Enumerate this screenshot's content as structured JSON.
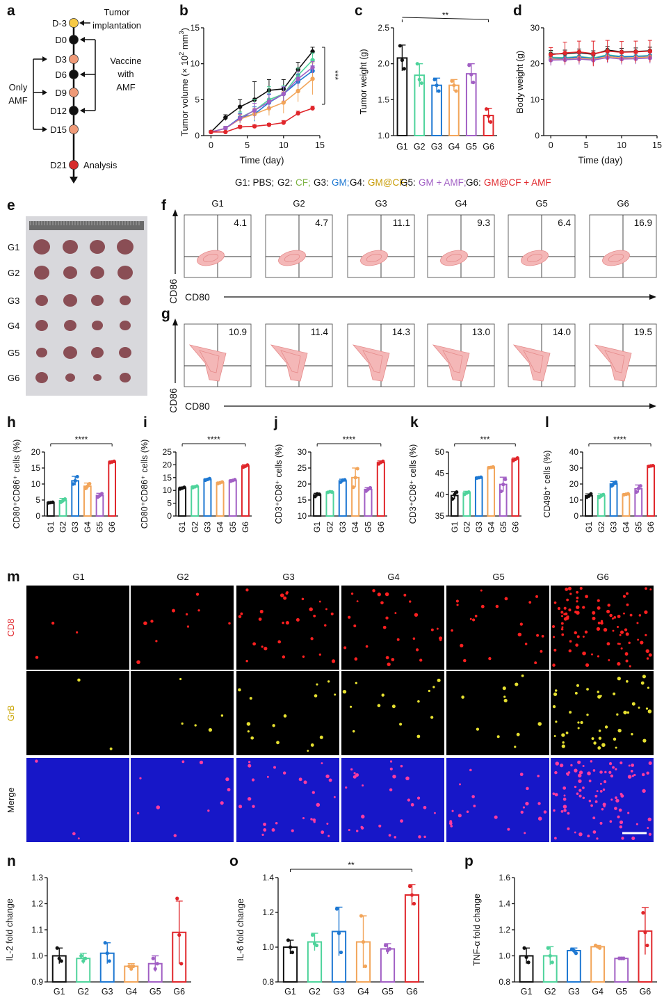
{
  "panel_letters": [
    "a",
    "b",
    "c",
    "d",
    "e",
    "f",
    "g",
    "h",
    "i",
    "j",
    "k",
    "l",
    "m",
    "n",
    "o",
    "p"
  ],
  "group_labels": [
    "G1",
    "G2",
    "G3",
    "G4",
    "G5",
    "G6"
  ],
  "colors": {
    "G1": "#111111",
    "G2": "#4ed39b",
    "G3": "#1e78d2",
    "G4": "#f2a55a",
    "G5": "#a15fc4",
    "G6": "#e0262b",
    "legend_prefix": "#111111",
    "timeline_ok": "#f6c945",
    "timeline_black": "#111111",
    "timeline_orange": "#ef9a78",
    "timeline_red": "#d62d2d",
    "flow_fill": "#f4b7b7",
    "flow_line": "#e58b8b",
    "cd8_dot": "#ff2020",
    "grb_dot": "#e6e030",
    "merge_bg": "#1717c8",
    "merge_dot": "#ff3ca0"
  },
  "timeline": {
    "days": [
      "D-3",
      "D0",
      "D3",
      "D6",
      "D9",
      "D12",
      "D15",
      "D21"
    ],
    "tumor_implantation": "Tumor implantation",
    "tumor_line1": "Tumor",
    "tumor_line2": "implantation",
    "vaccine_line1": "Vaccine",
    "vaccine_line2": "with",
    "vaccine_line3": "AMF",
    "only_line1": "Only",
    "only_line2": "AMF",
    "analysis": "Analysis"
  },
  "legend": {
    "items": [
      {
        "text": "G1: PBS;",
        "color": "#111111"
      },
      {
        "text": "G2:",
        "color": "#111111"
      },
      {
        "text": "CF;",
        "color": "#7cb342"
      },
      {
        "text": "G3:",
        "color": "#111111"
      },
      {
        "text": "GM;",
        "color": "#1e78d2"
      },
      {
        "text": "G4:",
        "color": "#111111"
      },
      {
        "text": "GM@CF;",
        "color": "#c79a00"
      },
      {
        "text": "G5:",
        "color": "#111111"
      },
      {
        "text": "GM + AMF;",
        "color": "#a15fc4"
      },
      {
        "text": "G6:",
        "color": "#111111"
      },
      {
        "text": "GM@CF + AMF",
        "color": "#e0262b"
      }
    ]
  },
  "flow": {
    "xlabel": "CD80",
    "ylabel": "CD86",
    "f_values": [
      "4.1",
      "4.7",
      "11.1",
      "9.3",
      "6.4",
      "16.9"
    ],
    "g_values": [
      "10.9",
      "11.4",
      "14.3",
      "13.0",
      "14.0",
      "19.5"
    ]
  },
  "photo": {
    "row_labels": [
      "G1",
      "G2",
      "G3",
      "G4",
      "G5",
      "G6"
    ]
  },
  "micro": {
    "row_labels": [
      "CD8",
      "GrB",
      "Merge"
    ],
    "row_colors": [
      "#e0262b",
      "#c9a400",
      "#111111"
    ]
  },
  "chart_data": [
    {
      "id": "b",
      "type": "line",
      "xlabel": "Time (day)",
      "ylabel": "Tumor volume (× 10² mm³)",
      "ylabel_main": "Tumor volume (× 10",
      "ylabel_sup": "2",
      "ylabel_tail": " mm",
      "ylabel_sup2": "3",
      "ylabel_end": ")",
      "xlim": [
        -1,
        15
      ],
      "ylim": [
        0,
        15
      ],
      "xticks": [
        0,
        5,
        10,
        15
      ],
      "yticks": [
        0,
        5,
        10,
        15
      ],
      "x": [
        0,
        2,
        4,
        6,
        8,
        10,
        12,
        14
      ],
      "significance": "***",
      "series": [
        {
          "name": "G1",
          "values": [
            0.5,
            2.5,
            4.0,
            5.0,
            6.3,
            6.5,
            9.2,
            11.7
          ],
          "err": [
            0.2,
            0.4,
            1.0,
            2.5,
            1.5,
            1.3,
            1.0,
            0.6
          ]
        },
        {
          "name": "G2",
          "values": [
            0.5,
            1.0,
            2.5,
            3.5,
            5.0,
            5.8,
            8.4,
            10.5
          ],
          "err": [
            0.1,
            0.3,
            0.8,
            1.5,
            1.8,
            1.2,
            1.0,
            1.0
          ]
        },
        {
          "name": "G3",
          "values": [
            0.5,
            1.0,
            2.5,
            3.0,
            4.6,
            5.8,
            7.5,
            9.0
          ],
          "err": [
            0.1,
            0.3,
            0.6,
            1.0,
            1.2,
            1.0,
            1.0,
            0.7
          ]
        },
        {
          "name": "G4",
          "values": [
            0.5,
            1.0,
            2.3,
            3.0,
            3.8,
            4.6,
            6.2,
            7.9
          ],
          "err": [
            0.1,
            0.3,
            0.6,
            0.8,
            1.0,
            1.5,
            1.5,
            2.2
          ]
        },
        {
          "name": "G5",
          "values": [
            0.5,
            1.0,
            2.4,
            3.5,
            4.7,
            5.8,
            7.9,
            9.5
          ],
          "err": [
            0.1,
            0.3,
            0.6,
            1.0,
            1.0,
            1.0,
            1.0,
            0.8
          ]
        },
        {
          "name": "G6",
          "values": [
            0.5,
            0.5,
            1.2,
            1.3,
            1.5,
            1.8,
            3.1,
            3.8
          ],
          "err": [
            0.1,
            0.1,
            0.2,
            0.2,
            0.2,
            0.3,
            0.3,
            0.3
          ]
        }
      ]
    },
    {
      "id": "c",
      "type": "bar",
      "ylabel": "Tumor weight (g)",
      "ylim": [
        1.0,
        2.5
      ],
      "yticks": [
        "1.0",
        "1.5",
        "2.0",
        "2.5"
      ],
      "categories": [
        "G1",
        "G2",
        "G3",
        "G4",
        "G5",
        "G6"
      ],
      "values": [
        2.08,
        1.84,
        1.7,
        1.7,
        1.86,
        1.28
      ],
      "err": [
        0.18,
        0.16,
        0.1,
        0.08,
        0.14,
        0.1
      ],
      "points": [
        [
          2.25,
          2.05,
          1.93
        ],
        [
          2.0,
          1.78,
          1.73
        ],
        [
          1.78,
          1.7,
          1.62
        ],
        [
          1.76,
          1.7,
          1.62
        ],
        [
          1.98,
          1.85,
          1.74
        ],
        [
          1.37,
          1.27,
          1.19
        ]
      ],
      "significance": "**",
      "sig_span": [
        0,
        5
      ]
    },
    {
      "id": "d",
      "type": "line",
      "xlabel": "Time (day)",
      "ylabel": "Body weight (g)",
      "xlim": [
        -1,
        15
      ],
      "ylim": [
        0,
        30
      ],
      "xticks": [
        0,
        5,
        10,
        15
      ],
      "yticks": [
        0,
        10,
        20,
        30
      ],
      "x": [
        0,
        2,
        4,
        6,
        8,
        10,
        12,
        14
      ],
      "series": [
        {
          "name": "G1",
          "values": [
            22.7,
            22.8,
            23.1,
            22.6,
            23.8,
            23.3,
            23.4,
            23.6
          ],
          "err": [
            1.0,
            1.0,
            1.0,
            1.0,
            1.0,
            1.0,
            1.0,
            1.0
          ]
        },
        {
          "name": "G2",
          "values": [
            21.8,
            21.7,
            22.0,
            21.6,
            22.5,
            22.0,
            22.1,
            22.3
          ],
          "err": [
            1.5,
            1.5,
            1.5,
            1.5,
            1.5,
            1.5,
            1.5,
            1.5
          ]
        },
        {
          "name": "G3",
          "values": [
            21.6,
            21.5,
            21.9,
            21.4,
            22.3,
            21.9,
            22.0,
            22.2
          ],
          "err": [
            1.2,
            1.2,
            1.2,
            1.2,
            1.2,
            1.2,
            1.2,
            1.2
          ]
        },
        {
          "name": "G4",
          "values": [
            21.3,
            21.2,
            21.6,
            21.2,
            22.0,
            21.6,
            21.7,
            21.9
          ],
          "err": [
            1.5,
            1.5,
            1.5,
            1.5,
            1.5,
            1.5,
            1.5,
            1.5
          ]
        },
        {
          "name": "G5",
          "values": [
            21.0,
            21.1,
            21.3,
            21.0,
            21.7,
            21.3,
            21.4,
            21.6
          ],
          "err": [
            1.5,
            1.5,
            1.5,
            1.5,
            1.5,
            1.5,
            1.5,
            1.5
          ]
        },
        {
          "name": "G6",
          "values": [
            22.5,
            23.0,
            23.3,
            22.8,
            23.5,
            23.2,
            23.3,
            23.5
          ],
          "err": [
            2.0,
            3.0,
            3.0,
            3.5,
            3.0,
            3.0,
            3.0,
            3.0
          ]
        }
      ]
    },
    {
      "id": "h",
      "type": "bar",
      "ylabel": "CD80⁺CD86⁺ cells (%)",
      "ylim": [
        0,
        20
      ],
      "yticks": [
        "0",
        "5",
        "10",
        "15",
        "20"
      ],
      "categories": [
        "G1",
        "G2",
        "G3",
        "G4",
        "G5",
        "G6"
      ],
      "values": [
        4.2,
        4.8,
        11.0,
        9.3,
        6.4,
        16.9
      ],
      "err": [
        0.2,
        0.7,
        1.4,
        1.0,
        0.7,
        0.3
      ],
      "points": [
        [
          4.1,
          4.2,
          4.3
        ],
        [
          4.3,
          4.8,
          5.3
        ],
        [
          10.0,
          11.0,
          12.3
        ],
        [
          8.6,
          9.3,
          10.1
        ],
        [
          5.9,
          6.4,
          7.0
        ],
        [
          16.7,
          16.9,
          17.1
        ]
      ],
      "significance": "****",
      "sig_span": [
        0,
        5
      ]
    },
    {
      "id": "i",
      "type": "bar",
      "ylabel": "CD80⁺CD86⁺ cells (%)",
      "ylim": [
        0,
        25
      ],
      "yticks": [
        "0",
        "5",
        "10",
        "15",
        "20",
        "25"
      ],
      "categories": [
        "G1",
        "G2",
        "G3",
        "G4",
        "G5",
        "G6"
      ],
      "values": [
        10.9,
        11.4,
        14.3,
        13.0,
        13.9,
        19.5
      ],
      "err": [
        0.4,
        0.4,
        0.3,
        0.3,
        0.3,
        0.5
      ],
      "points": [
        [
          10.6,
          10.9,
          11.2
        ],
        [
          11.1,
          11.4,
          11.7
        ],
        [
          14.0,
          14.3,
          14.6
        ],
        [
          12.7,
          13.0,
          13.3
        ],
        [
          13.6,
          13.9,
          14.2
        ],
        [
          19.1,
          19.5,
          19.9
        ]
      ],
      "significance": "****",
      "sig_span": [
        0,
        5
      ]
    },
    {
      "id": "j",
      "type": "bar",
      "ylabel": "CD3⁺CD8⁺ cells (%)",
      "ylim": [
        10,
        30
      ],
      "yticks": [
        "10",
        "15",
        "20",
        "25",
        "30"
      ],
      "categories": [
        "G1",
        "G2",
        "G3",
        "G4",
        "G5",
        "G6"
      ],
      "values": [
        16.6,
        17.5,
        21.0,
        22.0,
        18.3,
        26.7
      ],
      "err": [
        0.5,
        0.2,
        0.5,
        3.0,
        0.6,
        0.5
      ],
      "points": [
        [
          16.1,
          16.9,
          16.8
        ],
        [
          17.4,
          17.6,
          17.5
        ],
        [
          20.6,
          21.2,
          21.3
        ],
        [
          19.0,
          22.0,
          24.8
        ],
        [
          17.8,
          18.4,
          18.8
        ],
        [
          26.3,
          26.8,
          27.1
        ]
      ],
      "significance": "****",
      "sig_span": [
        0,
        5
      ]
    },
    {
      "id": "k",
      "type": "bar",
      "ylabel": "CD3⁺CD8⁺ cells (%)",
      "ylim": [
        35,
        50
      ],
      "yticks": [
        "35",
        "40",
        "45",
        "50"
      ],
      "categories": [
        "G1",
        "G2",
        "G3",
        "G4",
        "G5",
        "G6"
      ],
      "values": [
        39.8,
        40.4,
        44.0,
        46.4,
        42.4,
        48.3
      ],
      "err": [
        0.9,
        0.4,
        0.2,
        0.2,
        1.7,
        0.3
      ],
      "points": [
        [
          39.0,
          40.0,
          40.6
        ],
        [
          40.1,
          40.4,
          40.6
        ],
        [
          43.9,
          44.0,
          44.1
        ],
        [
          46.3,
          46.4,
          46.5
        ],
        [
          40.8,
          42.4,
          43.6
        ],
        [
          48.0,
          48.3,
          48.6
        ]
      ],
      "significance": "***",
      "sig_span": [
        0,
        5
      ]
    },
    {
      "id": "l",
      "type": "bar",
      "ylabel": "CD49b⁺ cells (%)",
      "ylim": [
        0,
        40
      ],
      "yticks": [
        "0",
        "10",
        "20",
        "30",
        "40"
      ],
      "categories": [
        "G1",
        "G2",
        "G3",
        "G4",
        "G5",
        "G6"
      ],
      "values": [
        12.6,
        12.6,
        20.0,
        13.6,
        17.0,
        31.3
      ],
      "err": [
        1.2,
        1.2,
        1.6,
        0.4,
        2.4,
        0.3
      ],
      "points": [
        [
          11.7,
          12.5,
          13.8
        ],
        [
          11.6,
          12.6,
          13.4
        ],
        [
          18.8,
          20.2,
          21.2
        ],
        [
          13.3,
          13.6,
          13.9
        ],
        [
          15.0,
          17.2,
          18.8
        ],
        [
          31.0,
          31.3,
          31.5
        ]
      ],
      "significance": "****",
      "sig_span": [
        0,
        5
      ]
    },
    {
      "id": "n",
      "type": "bar",
      "ylabel": "IL-2 fold change",
      "ylim": [
        0.9,
        1.3
      ],
      "yticks": [
        "0.9",
        "1.0",
        "1.1",
        "1.2",
        "1.3"
      ],
      "categories": [
        "G1",
        "G2",
        "G3",
        "G4",
        "G5",
        "G6"
      ],
      "values": [
        1.0,
        0.99,
        1.01,
        0.96,
        0.97,
        1.09
      ],
      "err": [
        0.03,
        0.02,
        0.04,
        0.01,
        0.03,
        0.12
      ],
      "points": [
        [
          1.03,
          0.99,
          0.98
        ],
        [
          1.0,
          0.98,
          0.99
        ],
        [
          1.05,
          1.01,
          0.98
        ],
        [
          0.96,
          0.95,
          0.96
        ],
        [
          0.99,
          0.95,
          0.97
        ],
        [
          1.22,
          1.08,
          0.97
        ]
      ]
    },
    {
      "id": "o",
      "type": "bar",
      "ylabel": "IL-6 fold change",
      "ylim": [
        0.8,
        1.4
      ],
      "yticks": [
        "0.8",
        "1.0",
        "1.2",
        "1.4"
      ],
      "categories": [
        "G1",
        "G2",
        "G3",
        "G4",
        "G5",
        "G6"
      ],
      "values": [
        1.0,
        1.03,
        1.09,
        1.03,
        0.99,
        1.3
      ],
      "err": [
        0.04,
        0.05,
        0.14,
        0.15,
        0.03,
        0.06
      ],
      "points": [
        [
          1.04,
          1.0,
          0.97
        ],
        [
          1.07,
          1.02,
          1.01
        ],
        [
          1.22,
          1.08,
          0.97
        ],
        [
          1.18,
          1.03,
          0.89
        ],
        [
          1.01,
          0.98,
          0.99
        ],
        [
          1.35,
          1.3,
          1.25
        ]
      ],
      "significance": "**",
      "sig_span": [
        0,
        5
      ]
    },
    {
      "id": "p",
      "type": "bar",
      "ylabel": "TNF-α fold change",
      "ylim": [
        0.8,
        1.6
      ],
      "yticks": [
        "0.8",
        "1.0",
        "1.2",
        "1.4",
        "1.6"
      ],
      "categories": [
        "G1",
        "G2",
        "G3",
        "G4",
        "G5",
        "G6"
      ],
      "values": [
        1.0,
        1.0,
        1.04,
        1.07,
        0.98,
        1.19
      ],
      "err": [
        0.06,
        0.07,
        0.02,
        0.01,
        0.01,
        0.18
      ],
      "points": [
        [
          1.06,
          0.99,
          0.95
        ],
        [
          1.06,
          1.0,
          0.95
        ],
        [
          1.05,
          1.04,
          1.02
        ],
        [
          1.08,
          1.07,
          1.06
        ],
        [
          0.98,
          0.98,
          0.98
        ],
        [
          1.33,
          1.18,
          1.08
        ]
      ]
    }
  ]
}
